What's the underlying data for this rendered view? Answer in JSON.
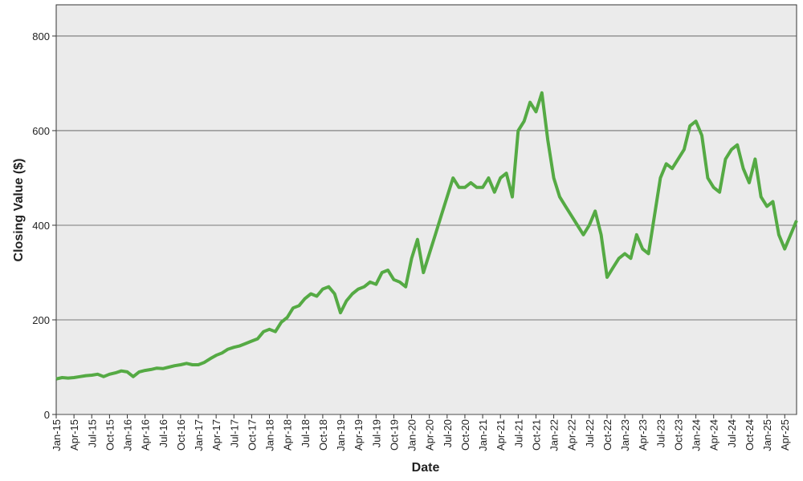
{
  "chart_data": {
    "type": "line",
    "x_label": "Date",
    "y_label": "Closing Value ($)",
    "x": [
      "2015-01",
      "2015-02",
      "2015-03",
      "2015-04",
      "2015-05",
      "2015-06",
      "2015-07",
      "2015-08",
      "2015-09",
      "2015-10",
      "2015-11",
      "2015-12",
      "2016-01",
      "2016-02",
      "2016-03",
      "2016-04",
      "2016-05",
      "2016-06",
      "2016-07",
      "2016-08",
      "2016-09",
      "2016-10",
      "2016-11",
      "2016-12",
      "2017-01",
      "2017-02",
      "2017-03",
      "2017-04",
      "2017-05",
      "2017-06",
      "2017-07",
      "2017-08",
      "2017-09",
      "2017-10",
      "2017-11",
      "2017-12",
      "2018-01",
      "2018-02",
      "2018-03",
      "2018-04",
      "2018-05",
      "2018-06",
      "2018-07",
      "2018-08",
      "2018-09",
      "2018-10",
      "2018-11",
      "2018-12",
      "2019-01",
      "2019-02",
      "2019-03",
      "2019-04",
      "2019-05",
      "2019-06",
      "2019-07",
      "2019-08",
      "2019-09",
      "2019-10",
      "2019-11",
      "2019-12",
      "2020-01",
      "2020-02",
      "2020-03",
      "2020-04",
      "2020-05",
      "2020-06",
      "2020-07",
      "2020-08",
      "2020-09",
      "2020-10",
      "2020-11",
      "2020-12",
      "2021-01",
      "2021-02",
      "2021-03",
      "2021-04",
      "2021-05",
      "2021-06",
      "2021-07",
      "2021-08",
      "2021-09",
      "2021-10",
      "2021-11",
      "2021-12",
      "2022-01",
      "2022-02",
      "2022-03",
      "2022-04",
      "2022-05",
      "2022-06",
      "2022-07",
      "2022-08",
      "2022-09",
      "2022-10",
      "2022-11",
      "2022-12",
      "2023-01",
      "2023-02",
      "2023-03",
      "2023-04",
      "2023-05",
      "2023-06",
      "2023-07",
      "2023-08",
      "2023-09",
      "2023-10",
      "2023-11",
      "2023-12",
      "2024-01",
      "2024-02",
      "2024-03",
      "2024-04",
      "2024-05",
      "2024-06",
      "2024-07",
      "2024-08",
      "2024-09",
      "2024-10",
      "2024-11",
      "2024-12",
      "2025-01",
      "2025-02",
      "2025-03",
      "2025-04",
      "2025-05",
      "2025-06"
    ],
    "series": [
      {
        "color": "#55aa44",
        "values": [
          75,
          78,
          77,
          78,
          80,
          82,
          83,
          85,
          80,
          85,
          88,
          92,
          90,
          80,
          90,
          93,
          95,
          98,
          97,
          100,
          103,
          105,
          108,
          105,
          105,
          110,
          118,
          125,
          130,
          138,
          142,
          145,
          150,
          155,
          160,
          175,
          180,
          175,
          195,
          205,
          225,
          230,
          245,
          255,
          250,
          265,
          270,
          255,
          215,
          240,
          255,
          265,
          270,
          280,
          275,
          300,
          305,
          285,
          280,
          270,
          330,
          370,
          300,
          340,
          380,
          420,
          460,
          500,
          480,
          480,
          490,
          480,
          480,
          500,
          470,
          500,
          510,
          460,
          600,
          620,
          660,
          640,
          680,
          580,
          500,
          460,
          440,
          420,
          400,
          380,
          400,
          430,
          380,
          290,
          310,
          330,
          340,
          330,
          380,
          350,
          340,
          420,
          500,
          530,
          520,
          540,
          560,
          610,
          620,
          590,
          500,
          480,
          470,
          540,
          560,
          570,
          520,
          490,
          540,
          460,
          440,
          450,
          380,
          350,
          380,
          410
        ]
      }
    ],
    "xlim": [
      "2015-01",
      "2025-06"
    ],
    "ylim": [
      0,
      866
    ],
    "yticks": [
      0,
      200,
      400,
      600,
      800
    ],
    "xticks": [
      {
        "value": "2015-01",
        "label": "Jan-15"
      },
      {
        "value": "2015-04",
        "label": "Apr-15"
      },
      {
        "value": "2015-07",
        "label": "Jul-15"
      },
      {
        "value": "2015-10",
        "label": "Oct-15"
      },
      {
        "value": "2016-01",
        "label": "Jan-16"
      },
      {
        "value": "2016-04",
        "label": "Apr-16"
      },
      {
        "value": "2016-07",
        "label": "Jul-16"
      },
      {
        "value": "2016-10",
        "label": "Oct-16"
      },
      {
        "value": "2017-01",
        "label": "Jan-17"
      },
      {
        "value": "2017-04",
        "label": "Apr-17"
      },
      {
        "value": "2017-07",
        "label": "Jul-17"
      },
      {
        "value": "2017-10",
        "label": "Oct-17"
      },
      {
        "value": "2018-01",
        "label": "Jan-18"
      },
      {
        "value": "2018-04",
        "label": "Apr-18"
      },
      {
        "value": "2018-07",
        "label": "Jul-18"
      },
      {
        "value": "2018-10",
        "label": "Oct-18"
      },
      {
        "value": "2019-01",
        "label": "Jan-19"
      },
      {
        "value": "2019-04",
        "label": "Apr-19"
      },
      {
        "value": "2019-07",
        "label": "Jul-19"
      },
      {
        "value": "2019-10",
        "label": "Oct-19"
      },
      {
        "value": "2020-01",
        "label": "Jan-20"
      },
      {
        "value": "2020-04",
        "label": "Apr-20"
      },
      {
        "value": "2020-07",
        "label": "Jul-20"
      },
      {
        "value": "2020-10",
        "label": "Oct-20"
      },
      {
        "value": "2021-01",
        "label": "Jan-21"
      },
      {
        "value": "2021-04",
        "label": "Apr-21"
      },
      {
        "value": "2021-07",
        "label": "Jul-21"
      },
      {
        "value": "2021-10",
        "label": "Oct-21"
      },
      {
        "value": "2022-01",
        "label": "Jan-22"
      },
      {
        "value": "2022-04",
        "label": "Apr-22"
      },
      {
        "value": "2022-07",
        "label": "Jul-22"
      },
      {
        "value": "2022-10",
        "label": "Oct-22"
      },
      {
        "value": "2023-01",
        "label": "Jan-23"
      },
      {
        "value": "2023-04",
        "label": "Apr-23"
      },
      {
        "value": "2023-07",
        "label": "Jul-23"
      },
      {
        "value": "2023-10",
        "label": "Oct-23"
      },
      {
        "value": "2024-01",
        "label": "Jan-24"
      },
      {
        "value": "2024-04",
        "label": "Apr-24"
      },
      {
        "value": "2024-07",
        "label": "Jul-24"
      },
      {
        "value": "2024-10",
        "label": "Oct-24"
      },
      {
        "value": "2025-01",
        "label": "Jan-25"
      },
      {
        "value": "2025-04",
        "label": "Apr-25"
      }
    ],
    "grid": true
  }
}
